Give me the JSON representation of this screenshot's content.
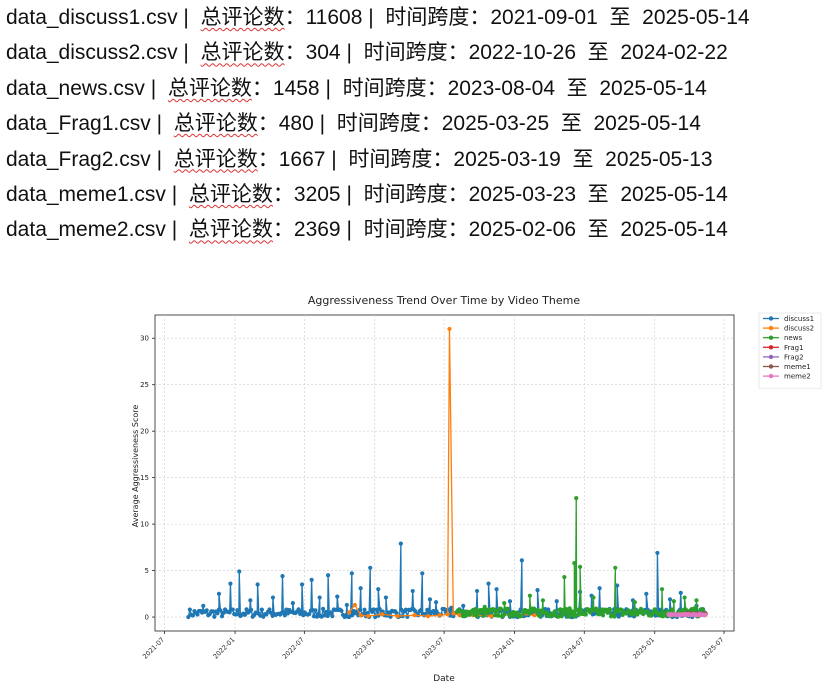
{
  "document": {
    "lines": [
      {
        "file": "data_discuss1.csv",
        "count_label": "总评论数",
        "count": "11608",
        "span_label": "时间跨度",
        "start": "2021-09-01",
        "to_word": "至",
        "end": "2025-05-14"
      },
      {
        "file": "data_discuss2.csv",
        "count_label": "总评论数",
        "count": "304",
        "span_label": "时间跨度",
        "start": "2022-10-26",
        "to_word": "至",
        "end": "2024-02-22"
      },
      {
        "file": "data_news.csv",
        "count_label": "总评论数",
        "count": "1458",
        "span_label": "时间跨度",
        "start": "2023-08-04",
        "to_word": "至",
        "end": "2025-05-14"
      },
      {
        "file": "data_Frag1.csv",
        "count_label": "总评论数",
        "count": "480",
        "span_label": "时间跨度",
        "start": "2025-03-25",
        "to_word": "至",
        "end": "2025-05-14"
      },
      {
        "file": "data_Frag2.csv",
        "count_label": "总评论数",
        "count": "1667",
        "span_label": "时间跨度",
        "start": "2025-03-19",
        "to_word": "至",
        "end": "2025-05-13"
      },
      {
        "file": "data_meme1.csv",
        "count_label": "总评论数",
        "count": "3205",
        "span_label": "时间跨度",
        "start": "2025-03-23",
        "to_word": "至",
        "end": "2025-05-14"
      },
      {
        "file": "data_meme2.csv",
        "count_label": "总评论数",
        "count": "2369",
        "span_label": "时间跨度",
        "start": "2025-02-06",
        "to_word": "至",
        "end": "2025-05-14"
      }
    ]
  },
  "chart_data": {
    "type": "line",
    "title": "Aggressiveness Trend Over Time by Video Theme",
    "xlabel": "Date",
    "ylabel": "Average Aggressiveness Score",
    "xlim": [
      "2021-06-06",
      "2025-07-27"
    ],
    "ylim": [
      -1.5,
      32.5
    ],
    "x_ticks": [
      "2021-07",
      "2022-01",
      "2022-07",
      "2023-01",
      "2023-07",
      "2024-01",
      "2024-07",
      "2025-01",
      "2025-07"
    ],
    "y_ticks": [
      0,
      5,
      10,
      15,
      20,
      25,
      30
    ],
    "grid": true,
    "legend_position": "outside-right",
    "marker": "circle",
    "series": [
      {
        "name": "discuss1",
        "color": "#1f77b4",
        "x": [
          "2021-09-01",
          "2025-05-14"
        ],
        "values": [
          0.3,
          0.5
        ],
        "spikes": [
          [
            "2021-10-10",
            1.2
          ],
          [
            "2021-11-20",
            2.5
          ],
          [
            "2021-12-20",
            3.6
          ],
          [
            "2022-01-12",
            4.9
          ],
          [
            "2022-02-10",
            1.8
          ],
          [
            "2022-03-01",
            3.5
          ],
          [
            "2022-04-10",
            2.1
          ],
          [
            "2022-05-05",
            4.4
          ],
          [
            "2022-06-01",
            1.5
          ],
          [
            "2022-06-25",
            3.5
          ],
          [
            "2022-07-20",
            4.0
          ],
          [
            "2022-08-10",
            2.1
          ],
          [
            "2022-09-01",
            4.5
          ],
          [
            "2022-09-25",
            2.2
          ],
          [
            "2022-10-20",
            1.3
          ],
          [
            "2022-11-02",
            4.7
          ],
          [
            "2022-11-25",
            3.1
          ],
          [
            "2022-12-20",
            5.3
          ],
          [
            "2023-01-10",
            3.0
          ],
          [
            "2023-01-30",
            2.1
          ],
          [
            "2023-03-10",
            7.9
          ],
          [
            "2023-04-10",
            2.8
          ],
          [
            "2023-05-05",
            4.7
          ],
          [
            "2023-05-25",
            1.9
          ],
          [
            "2023-06-10",
            1.6
          ],
          [
            "2023-07-20",
            1.0
          ],
          [
            "2023-08-20",
            1.2
          ],
          [
            "2023-09-25",
            2.8
          ],
          [
            "2023-10-25",
            3.6
          ],
          [
            "2023-11-15",
            3.0
          ],
          [
            "2023-12-20",
            1.7
          ],
          [
            "2024-01-20",
            6.1
          ],
          [
            "2024-03-01",
            2.9
          ],
          [
            "2024-04-20",
            1.7
          ],
          [
            "2024-06-20",
            2.7
          ],
          [
            "2024-07-20",
            2.3
          ],
          [
            "2024-08-10",
            3.1
          ],
          [
            "2024-09-25",
            3.4
          ],
          [
            "2024-11-05",
            1.8
          ],
          [
            "2024-12-10",
            2.5
          ],
          [
            "2025-01-08",
            6.9
          ],
          [
            "2025-02-10",
            1.9
          ],
          [
            "2025-03-10",
            2.6
          ],
          [
            "2025-04-20",
            1.2
          ]
        ]
      },
      {
        "name": "discuss2",
        "color": "#ff7f0e",
        "x": [
          "2022-10-26",
          "2022-11-10",
          "2022-11-25",
          "2022-12-15",
          "2023-01-20",
          "2023-03-01",
          "2023-04-15",
          "2023-05-20",
          "2023-06-20",
          "2023-07-10",
          "2023-07-15",
          "2023-07-25",
          "2023-08-10",
          "2023-09-15",
          "2023-11-01",
          "2024-01-10",
          "2024-02-22"
        ],
        "values": [
          0.5,
          1.3,
          0.2,
          0.1,
          0.3,
          0.1,
          0.2,
          0.1,
          0.2,
          0.3,
          31.0,
          0.4,
          0.2,
          0.2,
          0.1,
          0.3,
          0.2
        ]
      },
      {
        "name": "news",
        "color": "#2ca02c",
        "x": [
          "2023-08-04",
          "2025-05-14"
        ],
        "values": [
          0.4,
          0.5
        ],
        "spikes": [
          [
            "2023-10-15",
            1.1
          ],
          [
            "2023-12-05",
            1.5
          ],
          [
            "2024-02-10",
            2.3
          ],
          [
            "2024-03-15",
            1.8
          ],
          [
            "2024-05-10",
            4.3
          ],
          [
            "2024-06-05",
            5.8
          ],
          [
            "2024-06-10",
            12.8
          ],
          [
            "2024-06-20",
            5.4
          ],
          [
            "2024-07-25",
            2.1
          ],
          [
            "2024-09-20",
            5.3
          ],
          [
            "2024-11-10",
            1.6
          ],
          [
            "2025-01-20",
            3.0
          ],
          [
            "2025-02-20",
            1.7
          ],
          [
            "2025-03-20",
            2.1
          ],
          [
            "2025-04-20",
            1.8
          ]
        ]
      },
      {
        "name": "Frag1",
        "color": "#d62728",
        "x": [
          "2025-03-25",
          "2025-05-14"
        ],
        "values": [
          0.2,
          0.2
        ]
      },
      {
        "name": "Frag2",
        "color": "#9467bd",
        "x": [
          "2025-03-19",
          "2025-05-13"
        ],
        "values": [
          0.2,
          0.3
        ]
      },
      {
        "name": "meme1",
        "color": "#8c564b",
        "x": [
          "2025-03-23",
          "2025-05-14"
        ],
        "values": [
          0.3,
          0.2
        ]
      },
      {
        "name": "meme2",
        "color": "#e377c2",
        "x": [
          "2025-02-06",
          "2025-05-14"
        ],
        "values": [
          0.2,
          0.3
        ]
      }
    ]
  }
}
